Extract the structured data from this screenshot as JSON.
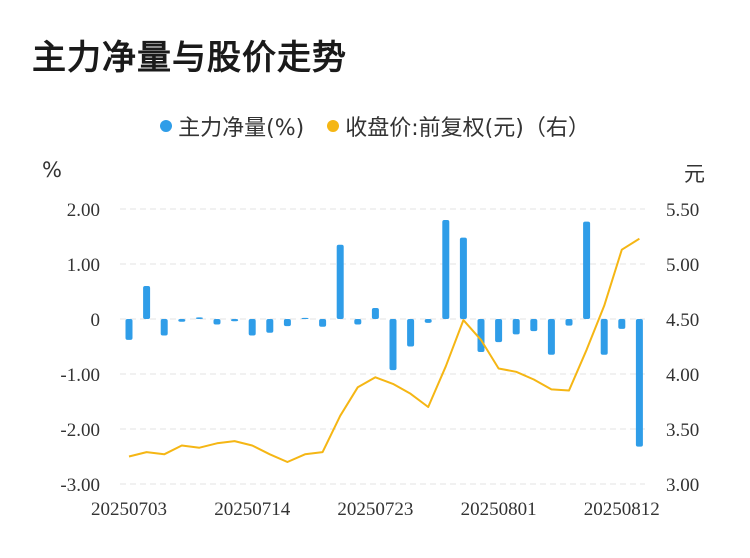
{
  "title": "主力净量与股价走势",
  "legend": {
    "series1": "主力净量(%)",
    "series2": "收盘价:前复权(元)（右）"
  },
  "units": {
    "left": "%",
    "right": "元"
  },
  "colors": {
    "bar": "#2f9de8",
    "line": "#f5b614",
    "grid": "#e3e3e3"
  },
  "chart_data": {
    "type": "bar+line",
    "title": "主力净量与股价走势",
    "x_ticks": [
      "20250703",
      "20250714",
      "20250723",
      "20250801",
      "20250812"
    ],
    "y_left": {
      "label": "%",
      "ylim": [
        -3,
        2
      ],
      "ticks": [
        "2.00",
        "1.00",
        "0",
        "-1.00",
        "-2.00",
        "-3.00"
      ]
    },
    "y_right": {
      "label": "元",
      "ylim": [
        3.0,
        5.5
      ],
      "ticks": [
        "5.50",
        "5.00",
        "4.50",
        "4.00",
        "3.50",
        "3.00"
      ]
    },
    "grid": true,
    "legend_position": "top-center",
    "series": [
      {
        "name": "主力净量(%)",
        "type": "bar",
        "axis": "left",
        "values": [
          -0.38,
          0.6,
          -0.3,
          -0.05,
          0.03,
          -0.1,
          -0.04,
          -0.3,
          -0.25,
          -0.13,
          0.02,
          -0.14,
          1.35,
          -0.1,
          0.2,
          -0.93,
          -0.5,
          -0.07,
          1.8,
          1.48,
          -0.6,
          -0.42,
          -0.28,
          -0.22,
          -0.65,
          -0.12,
          1.77,
          -0.65,
          -0.18,
          -2.32
        ]
      },
      {
        "name": "收盘价:前复权(元)（右）",
        "type": "line",
        "axis": "right",
        "values": [
          3.25,
          3.29,
          3.27,
          3.35,
          3.33,
          3.37,
          3.39,
          3.35,
          3.27,
          3.2,
          3.27,
          3.29,
          3.62,
          3.88,
          3.97,
          3.91,
          3.82,
          3.7,
          4.07,
          4.49,
          4.31,
          4.05,
          4.02,
          3.95,
          3.86,
          3.85,
          4.22,
          4.62,
          5.13,
          5.23
        ]
      }
    ]
  }
}
